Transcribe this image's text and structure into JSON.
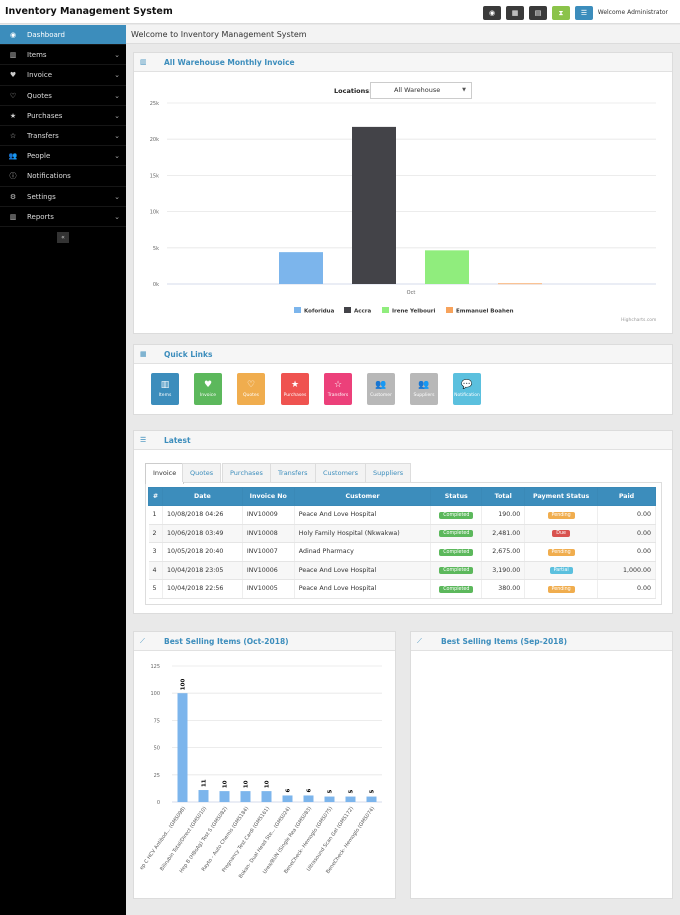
{
  "app": {
    "title": "Inventory Management System",
    "welcome": "Welcome Administrator"
  },
  "topbar": {
    "buttons": [
      {
        "icon": "dashboard-icon",
        "color": "#3a3a3a"
      },
      {
        "icon": "calculator-icon",
        "color": "#3a3a3a"
      },
      {
        "icon": "calendar-icon",
        "color": "#3a3a3a"
      },
      {
        "icon": "hourglass-icon",
        "color": "#8bc34a"
      },
      {
        "icon": "list-icon",
        "color": "#3c8dbc"
      }
    ]
  },
  "sidebar": {
    "items": [
      {
        "label": "Dashboard",
        "icon": "dashboard-icon",
        "active": true
      },
      {
        "label": "Items",
        "icon": "barcode-icon",
        "has_children": true
      },
      {
        "label": "Invoice",
        "icon": "heart-icon",
        "has_children": true
      },
      {
        "label": "Quotes",
        "icon": "heart-outline-icon",
        "has_children": true
      },
      {
        "label": "Purchases",
        "icon": "star-icon",
        "has_children": true
      },
      {
        "label": "Transfers",
        "icon": "star-outline-icon",
        "has_children": true
      },
      {
        "label": "People",
        "icon": "users-icon",
        "has_children": true
      },
      {
        "label": "Notifications",
        "icon": "info-icon"
      },
      {
        "label": "Settings",
        "icon": "cog-icon",
        "has_children": true
      },
      {
        "label": "Reports",
        "icon": "bar-chart-icon",
        "has_children": true
      }
    ],
    "collapse_label": "«"
  },
  "page": {
    "title": "Welcome to Inventory Management System"
  },
  "warehouse_panel": {
    "title": "All Warehouse Monthly Invoice",
    "locations_label": "Locations:",
    "location_selected": "All Warehouse",
    "credit": "Highcharts.com"
  },
  "quick_links": {
    "title": "Quick Links",
    "items": [
      {
        "label": "Items",
        "color": "#3c8dbc",
        "icon": "barcode-icon",
        "glyph": "▥"
      },
      {
        "label": "Invoice",
        "color": "#5cb85c",
        "icon": "heart-icon",
        "glyph": "♥"
      },
      {
        "label": "Quotes",
        "color": "#f0ad4e",
        "icon": "heart-outline-icon",
        "glyph": "♡"
      },
      {
        "label": "Purchases",
        "color": "#ef5350",
        "icon": "star-icon",
        "glyph": "★"
      },
      {
        "label": "Transfers",
        "color": "#ec407a",
        "icon": "star-outline-icon",
        "glyph": "☆"
      },
      {
        "label": "Customer",
        "color": "#b8b8b8",
        "icon": "users-icon",
        "glyph": "👥"
      },
      {
        "label": "Suppliers",
        "color": "#b8b8b8",
        "icon": "users-icon",
        "glyph": "👥"
      },
      {
        "label": "Notification",
        "color": "#5bc0de",
        "icon": "comments-icon",
        "glyph": "💬"
      }
    ]
  },
  "latest": {
    "title": "Latest",
    "tabs": [
      "Invoice",
      "Quotes",
      "Purchases",
      "Transfers",
      "Customers",
      "Suppliers"
    ],
    "columns": [
      "#",
      "Date",
      "Invoice No",
      "Customer",
      "Status",
      "Total",
      "Payment Status",
      "Paid"
    ],
    "rows": [
      {
        "n": "1",
        "date": "10/08/2018 04:26",
        "inv": "INV10009",
        "customer": "Peace And Love Hospital",
        "status": "Completed",
        "total": "190.00",
        "pay": "Pending",
        "paid": "0.00"
      },
      {
        "n": "2",
        "date": "10/06/2018 03:49",
        "inv": "INV10008",
        "customer": "Holy Family Hospital (Nkwakwa)",
        "status": "Completed",
        "total": "2,481.00",
        "pay": "Due",
        "paid": "0.00"
      },
      {
        "n": "3",
        "date": "10/05/2018 20:40",
        "inv": "INV10007",
        "customer": "Adinad Pharmacy",
        "status": "Completed",
        "total": "2,675.00",
        "pay": "Pending",
        "paid": "0.00"
      },
      {
        "n": "4",
        "date": "10/04/2018 23:05",
        "inv": "INV10006",
        "customer": "Peace And Love Hospital",
        "status": "Completed",
        "total": "3,190.00",
        "pay": "Partial",
        "paid": "1,000.00"
      },
      {
        "n": "5",
        "date": "10/04/2018 22:56",
        "inv": "INV10005",
        "customer": "Peace And Love Hospital",
        "status": "Completed",
        "total": "380.00",
        "pay": "Pending",
        "paid": "0.00"
      }
    ]
  },
  "status_colors": {
    "Completed": "#5cb85c",
    "Pending": "#f0ad4e",
    "Due": "#d9534f",
    "Partial": "#5bc0de"
  },
  "best_oct": {
    "title": "Best Selling Items (Oct-2018)"
  },
  "best_sep": {
    "title": "Best Selling Items (Sep-2018)"
  },
  "chart_data": [
    {
      "type": "bar",
      "xlabel": "",
      "ylabel": "",
      "categories": [
        "Oct"
      ],
      "ylim": [
        0,
        25000
      ],
      "yticks": [
        0,
        5000,
        10000,
        15000,
        20000,
        25000
      ],
      "ytick_labels": [
        "0k",
        "5k",
        "10k",
        "15k",
        "20k",
        "25k"
      ],
      "series": [
        {
          "name": "Koforidua",
          "color": "#7cb5ec",
          "values": [
            4400
          ]
        },
        {
          "name": "Accra",
          "color": "#434348",
          "values": [
            21700
          ]
        },
        {
          "name": "Irene Yelbouri",
          "color": "#90ed7d",
          "values": [
            4650
          ]
        },
        {
          "name": "Emmanuel Boahen",
          "color": "#f7a35c",
          "values": [
            90
          ]
        }
      ],
      "legend": "bottom",
      "grid": true
    },
    {
      "type": "bar",
      "xlabel": "",
      "ylabel": "",
      "ylim": [
        0,
        125
      ],
      "yticks": [
        0,
        25,
        50,
        75,
        100,
        125
      ],
      "categories": [
        "ep C HCV Antibod... (GMS098)",
        "Bilirubin Total/Direct (GMS010)",
        "Hep B (HBsAg) Test S (GMS082)",
        "Rayto - Auto Chemis (GMS184)",
        "Pregnancy Test Cardi (GMS161)",
        "Bokan- Dual Head Ste... (GMS024)",
        "Urea/BUN (Single Rea (GMS083)",
        "BeneCheck- Hemoglo (GMS075)",
        "Ultrasound Scan Gel (GMS172)",
        "BeneCheck- Hemoglo (GMS074)"
      ],
      "values": [
        100,
        11,
        10,
        10,
        10,
        6,
        6,
        5,
        5,
        5
      ],
      "color": "#7cb5ec",
      "data_labels": true,
      "grid": true
    }
  ]
}
